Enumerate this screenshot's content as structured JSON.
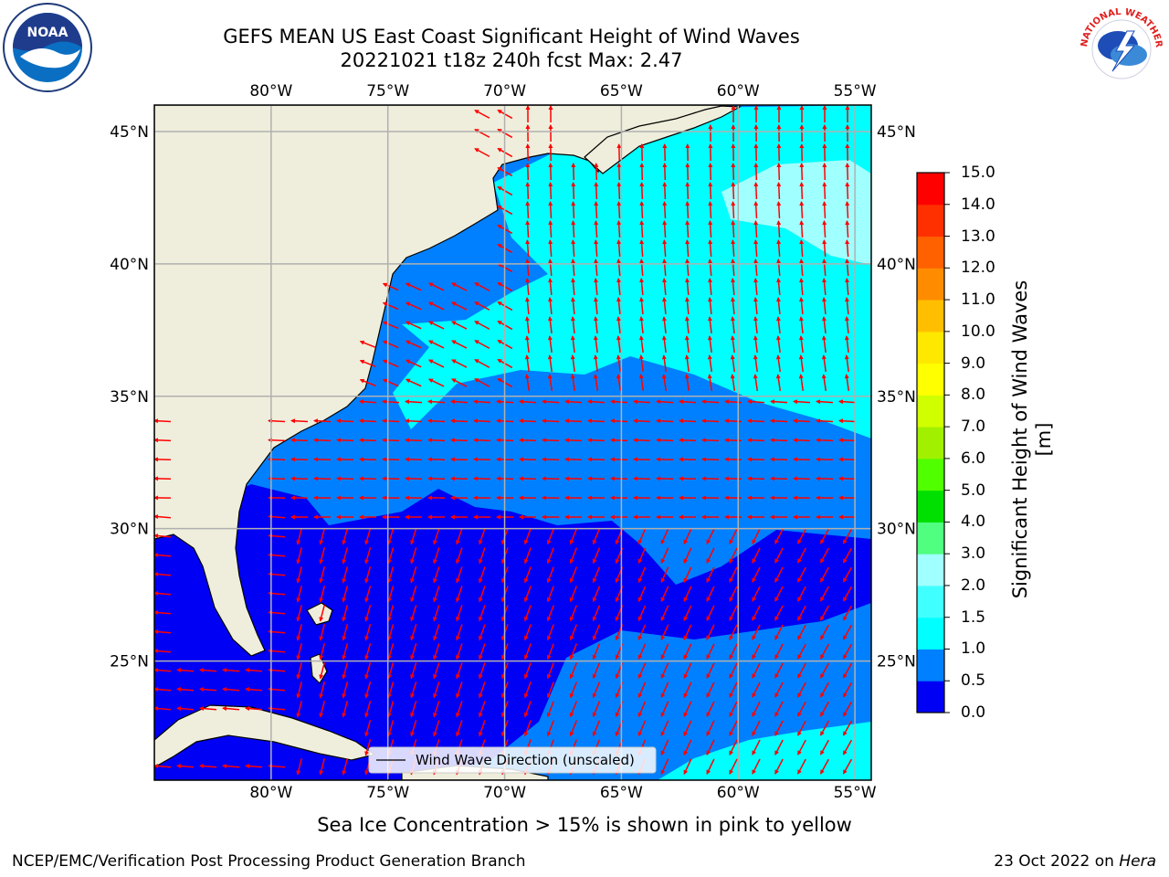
{
  "header": {
    "title_line1": "GEFS MEAN US East Coast Significant Height of Wind Waves",
    "title_line2": "20221021 t18z 240h fcst   Max: 2.47"
  },
  "logos": {
    "left": {
      "icon": "noaa-logo-icon",
      "text": "NOAA"
    },
    "right": {
      "icon": "nws-logo-icon",
      "text": "NATIONAL WEATHER SERVICE"
    }
  },
  "map": {
    "lon_ticks": [
      "80°W",
      "75°W",
      "70°W",
      "65°W",
      "60°W",
      "55°W"
    ],
    "lat_ticks": [
      "45°N",
      "40°N",
      "35°N",
      "30°N",
      "25°N"
    ],
    "lon_values": [
      -80,
      -75,
      -70,
      -65,
      -60,
      -55
    ],
    "lat_values": [
      45,
      40,
      35,
      30,
      25
    ],
    "extent": {
      "lon": [
        -85,
        -54.3
      ],
      "lat": [
        20.5,
        46
      ]
    },
    "legend": "Wind Wave Direction (unscaled)",
    "colors": {
      "land": "#efeedc",
      "arrow": "#ff0000",
      "grid": "#b0b0b0"
    }
  },
  "colorbar": {
    "label": "Significant Height of Wind Waves [m]",
    "ticks": [
      "0.0",
      "0.5",
      "1.0",
      "1.5",
      "2.0",
      "3.0",
      "4.0",
      "5.0",
      "6.0",
      "7.0",
      "8.0",
      "9.0",
      "10.0",
      "11.0",
      "12.0",
      "13.0",
      "14.0",
      "15.0"
    ],
    "colors": [
      "#0000f5",
      "#0080ff",
      "#00ffff",
      "#40ffff",
      "#a0ffff",
      "#50ff80",
      "#00e000",
      "#50ff00",
      "#a0f000",
      "#d0ff00",
      "#ffff00",
      "#ffe800",
      "#ffbf00",
      "#ff8c00",
      "#ff6000",
      "#ff3000",
      "#ff0000"
    ]
  },
  "chart_data": {
    "type": "heatmap",
    "title": "GEFS MEAN US East Coast Significant Height of Wind Waves",
    "subtitle": "20221021 t18z 240h fcst   Max: 2.47",
    "variable": "Significant Height of Wind Waves [m]",
    "max": 2.47,
    "x_range_lon": [
      -85,
      -54.3
    ],
    "y_range_lat": [
      20.5,
      46
    ],
    "grid": true,
    "legend": "Wind Wave Direction (unscaled)",
    "legend_placement": "bottom-center"
  },
  "notes": {
    "ice": "Sea Ice Concentration > 15% is shown in pink to yellow"
  },
  "footer": {
    "left": "NCEP/EMC/Verification Post Processing Product Generation Branch",
    "right_date": "23 Oct 2022 on ",
    "right_system": "Hera"
  }
}
